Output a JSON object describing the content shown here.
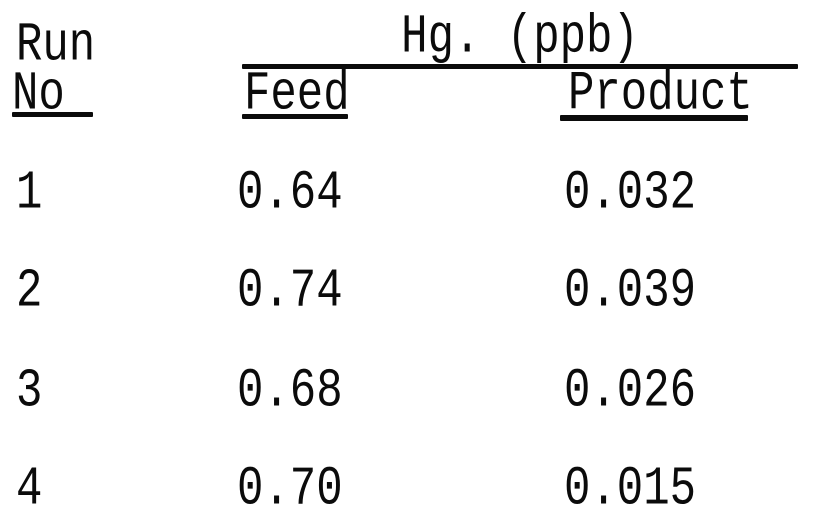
{
  "page": {
    "background_color": "#ffffff",
    "text_color": "#0b0b0b"
  },
  "table": {
    "col1_header": {
      "line1": "Run",
      "line2": "No"
    },
    "group_header": "Hg. (ppb)",
    "columns": {
      "feed": "Feed",
      "product": "Product"
    },
    "rows": [
      {
        "run_no": "1",
        "feed": "0.64",
        "product": "0.032"
      },
      {
        "run_no": "2",
        "feed": "0.74",
        "product": "0.039"
      },
      {
        "run_no": "3",
        "feed": "0.68",
        "product": "0.026"
      },
      {
        "run_no": "4",
        "feed": "0.70",
        "product": "0.015"
      }
    ]
  },
  "chart_data": {
    "type": "table",
    "title": "Hg. (ppb)",
    "columns": [
      "Run No",
      "Feed",
      "Product"
    ],
    "rows": [
      [
        1,
        0.64,
        0.032
      ],
      [
        2,
        0.74,
        0.039
      ],
      [
        3,
        0.68,
        0.026
      ],
      [
        4,
        0.7,
        0.015
      ]
    ]
  }
}
